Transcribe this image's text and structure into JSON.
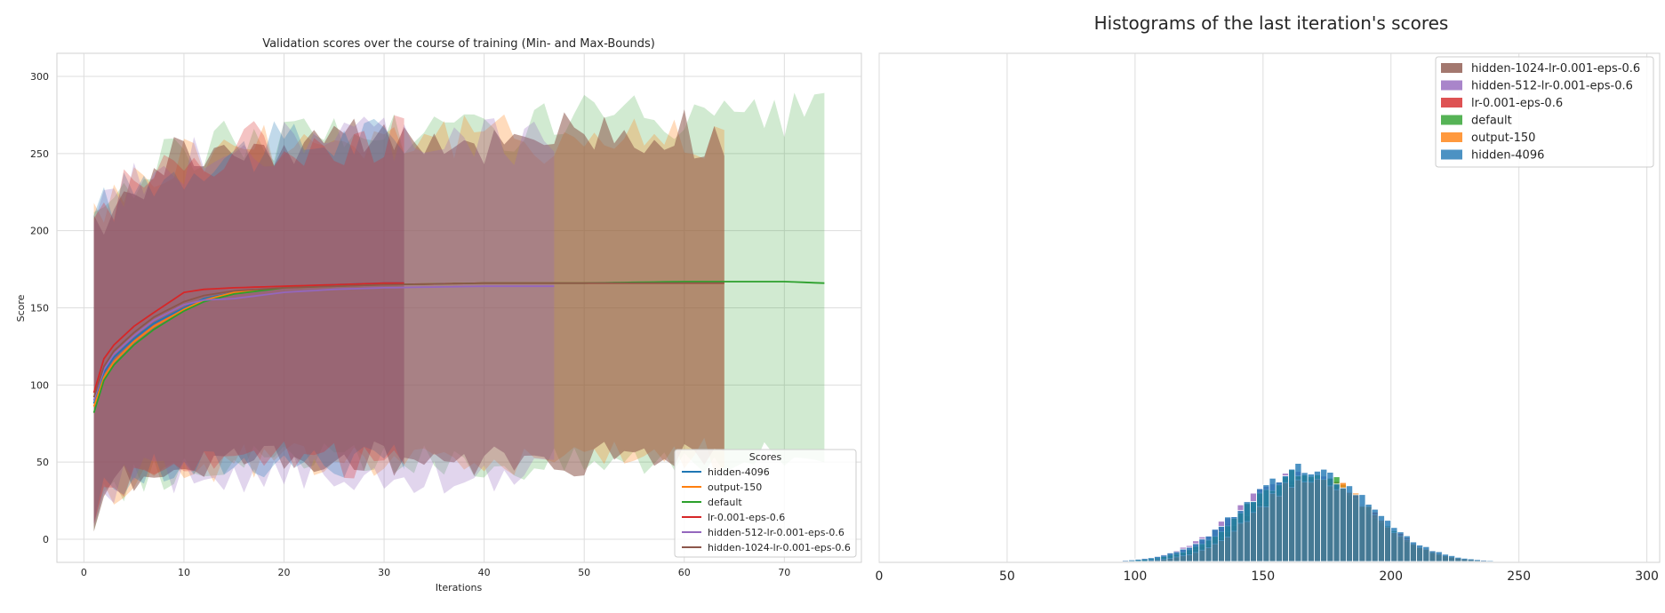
{
  "chart_data": [
    {
      "type": "line",
      "title": "Validation scores over the course of training (Min- and Max-Bounds)",
      "xlabel": "Iterations",
      "ylabel": "Score",
      "xlim": [
        -2.7,
        77.7
      ],
      "ylim": [
        -15,
        315
      ],
      "xticks": [
        0,
        10,
        20,
        30,
        40,
        50,
        60,
        70
      ],
      "yticks": [
        0,
        50,
        100,
        150,
        200,
        250,
        300
      ],
      "grid": true,
      "legend": {
        "title": "Scores",
        "placement": "lower-right"
      },
      "series": [
        {
          "name": "hidden-4096",
          "color": "#1f77b4",
          "iterations": 32,
          "x": [
            1,
            2,
            3,
            5,
            7,
            10,
            12,
            15,
            20,
            25,
            30,
            32
          ],
          "y": [
            88,
            108,
            118,
            130,
            140,
            150,
            156,
            160,
            163,
            165,
            166,
            166
          ],
          "min": [
            10,
            30,
            35,
            40,
            45,
            45,
            48,
            50,
            52,
            50,
            50,
            50
          ],
          "max": [
            210,
            215,
            220,
            228,
            235,
            240,
            248,
            250,
            255,
            258,
            260,
            258
          ]
        },
        {
          "name": "output-150",
          "color": "#ff7f0e",
          "iterations": 64,
          "x": [
            1,
            2,
            3,
            5,
            7,
            10,
            12,
            15,
            20,
            25,
            30,
            40,
            50,
            60,
            64
          ],
          "y": [
            86,
            105,
            115,
            128,
            138,
            149,
            155,
            160,
            163,
            164,
            165,
            166,
            166,
            166,
            166
          ],
          "min": [
            8,
            28,
            33,
            40,
            43,
            45,
            48,
            50,
            52,
            52,
            52,
            50,
            52,
            55,
            55
          ],
          "max": [
            218,
            218,
            222,
            232,
            238,
            248,
            252,
            255,
            260,
            258,
            262,
            260,
            260,
            262,
            262
          ]
        },
        {
          "name": "default",
          "color": "#2ca02c",
          "iterations": 74,
          "x": [
            1,
            2,
            3,
            5,
            7,
            10,
            12,
            15,
            20,
            25,
            30,
            40,
            50,
            60,
            65,
            70,
            74
          ],
          "y": [
            82,
            103,
            113,
            126,
            136,
            148,
            154,
            159,
            163,
            164,
            165,
            166,
            166,
            167,
            167,
            167,
            166
          ],
          "min": [
            5,
            25,
            32,
            38,
            42,
            45,
            48,
            50,
            52,
            52,
            50,
            50,
            50,
            55,
            55,
            55,
            58
          ],
          "max": [
            212,
            220,
            225,
            232,
            240,
            250,
            255,
            260,
            262,
            262,
            265,
            265,
            275,
            270,
            268,
            272,
            275
          ]
        },
        {
          "name": "lr-0.001-eps-0.6",
          "color": "#d62728",
          "iterations": 32,
          "x": [
            1,
            2,
            3,
            5,
            7,
            10,
            12,
            15,
            20,
            25,
            30,
            32
          ],
          "y": [
            95,
            117,
            126,
            138,
            147,
            160,
            162,
            163,
            164,
            165,
            166,
            166
          ],
          "min": [
            10,
            30,
            36,
            42,
            45,
            47,
            48,
            50,
            52,
            52,
            50,
            50
          ],
          "max": [
            208,
            215,
            222,
            230,
            238,
            245,
            250,
            255,
            258,
            258,
            260,
            258
          ]
        },
        {
          "name": "hidden-512-lr-0.001-eps-0.6",
          "color": "#9467bd",
          "iterations": 47,
          "x": [
            1,
            2,
            3,
            5,
            7,
            10,
            12,
            15,
            20,
            25,
            30,
            40,
            47
          ],
          "y": [
            90,
            110,
            120,
            132,
            142,
            152,
            155,
            156,
            160,
            162,
            163,
            164,
            164
          ],
          "min": [
            8,
            28,
            34,
            40,
            42,
            40,
            38,
            40,
            45,
            42,
            40,
            42,
            45
          ],
          "max": [
            205,
            215,
            220,
            228,
            238,
            245,
            250,
            255,
            258,
            260,
            258,
            258,
            258
          ]
        },
        {
          "name": "hidden-1024-lr-0.001-eps-0.6",
          "color": "#8c564b",
          "iterations": 64,
          "x": [
            1,
            2,
            3,
            5,
            7,
            10,
            12,
            15,
            20,
            25,
            30,
            40,
            50,
            60,
            64
          ],
          "y": [
            92,
            112,
            122,
            134,
            144,
            154,
            158,
            161,
            163,
            164,
            165,
            166,
            166,
            166,
            166
          ],
          "min": [
            5,
            28,
            34,
            40,
            44,
            46,
            48,
            50,
            52,
            52,
            52,
            52,
            52,
            55,
            55
          ],
          "max": [
            210,
            212,
            218,
            228,
            238,
            248,
            250,
            255,
            258,
            260,
            260,
            260,
            262,
            262,
            262
          ]
        }
      ]
    },
    {
      "type": "histogram",
      "title": "Histograms of the last iteration's scores",
      "xlim": [
        0,
        305
      ],
      "xticks": [
        0,
        50,
        100,
        150,
        200,
        250,
        300
      ],
      "bin_width": 2.5,
      "grid": true,
      "legend": {
        "placement": "top-right"
      },
      "series": [
        {
          "name": "hidden-1024-lr-0.001-eps-0.6",
          "color": "#8c564b",
          "mean": 166,
          "sd": 24,
          "peak": 296
        },
        {
          "name": "hidden-512-lr-0.001-eps-0.6",
          "color": "#9467bd",
          "mean": 165,
          "sd": 24,
          "peak": 285
        },
        {
          "name": "lr-0.001-eps-0.6",
          "color": "#d62728",
          "mean": 169,
          "sd": 23,
          "peak": 291
        },
        {
          "name": "default",
          "color": "#2ca02c",
          "mean": 167,
          "sd": 23,
          "peak": 282
        },
        {
          "name": "output-150",
          "color": "#ff7f0e",
          "mean": 170,
          "sd": 22,
          "peak": 288
        },
        {
          "name": "hidden-4096",
          "color": "#1f77b4",
          "mean": 167,
          "sd": 24,
          "peak": 277
        }
      ]
    }
  ]
}
